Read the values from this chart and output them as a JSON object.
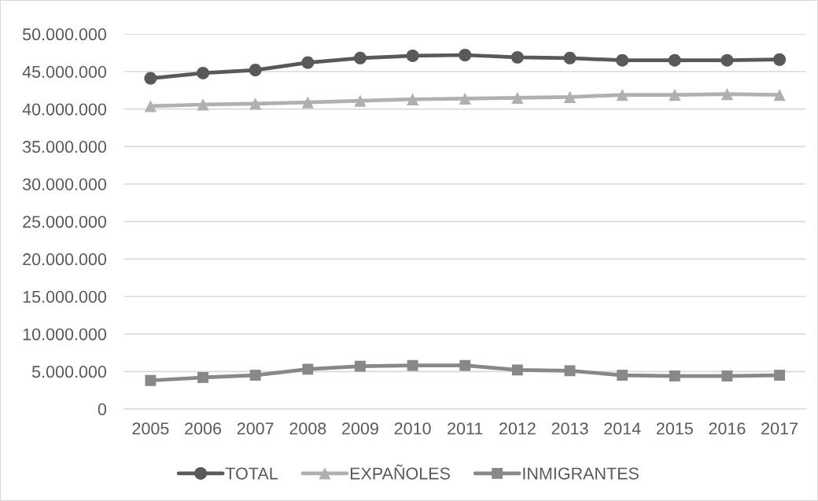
{
  "chart_data": {
    "type": "line",
    "categories": [
      "2005",
      "2006",
      "2007",
      "2008",
      "2009",
      "2010",
      "2011",
      "2012",
      "2013",
      "2014",
      "2015",
      "2016",
      "2017"
    ],
    "series": [
      {
        "name": "TOTAL",
        "color": "#595959",
        "marker": "circle",
        "values": [
          44100000,
          44800000,
          45200000,
          46200000,
          46800000,
          47100000,
          47200000,
          46900000,
          46800000,
          46500000,
          46500000,
          46500000,
          46600000
        ]
      },
      {
        "name": "EXPAÑOLES",
        "color": "#b0b0b0",
        "marker": "triangle",
        "values": [
          40400000,
          40600000,
          40700000,
          40900000,
          41100000,
          41300000,
          41400000,
          41500000,
          41600000,
          41900000,
          41900000,
          42000000,
          41900000
        ]
      },
      {
        "name": "INMIGRANTES",
        "color": "#888888",
        "marker": "square",
        "values": [
          3800000,
          4200000,
          4500000,
          5300000,
          5700000,
          5800000,
          5800000,
          5200000,
          5100000,
          4500000,
          4400000,
          4400000,
          4500000
        ]
      }
    ],
    "ylim": [
      0,
      50000000
    ],
    "yticks": [
      {
        "value": 0,
        "label": "0"
      },
      {
        "value": 5000000,
        "label": "5.000.000"
      },
      {
        "value": 10000000,
        "label": "10.000.000"
      },
      {
        "value": 15000000,
        "label": "15.000.000"
      },
      {
        "value": 20000000,
        "label": "20.000.000"
      },
      {
        "value": 25000000,
        "label": "25.000.000"
      },
      {
        "value": 30000000,
        "label": "30.000.000"
      },
      {
        "value": 35000000,
        "label": "35.000.000"
      },
      {
        "value": 40000000,
        "label": "40.000.000"
      },
      {
        "value": 45000000,
        "label": "45.000.000"
      },
      {
        "value": 50000000,
        "label": "50.000.000"
      }
    ],
    "grid": "y",
    "legend": "bottom",
    "line_style": "solid"
  }
}
